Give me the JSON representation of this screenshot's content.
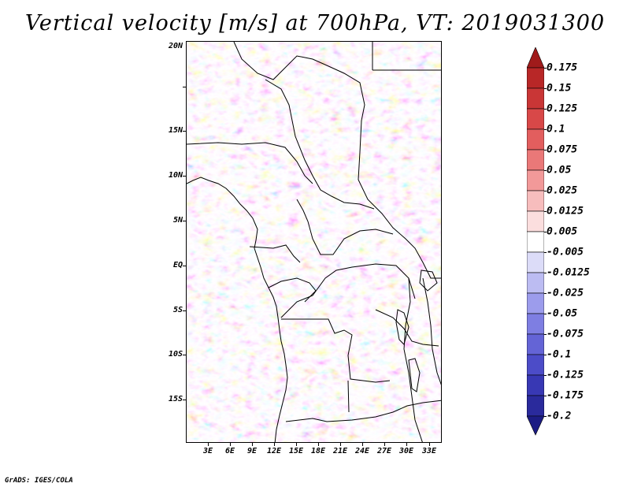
{
  "title": "Vertical velocity [m/s] at 700hPa, VT: 2019031300",
  "credit": "GrADS: IGES/COLA",
  "map": {
    "latitude_labels": [
      "20N",
      "15N",
      "10N",
      "5N",
      "EQ",
      "5S",
      "10S",
      "15S"
    ],
    "longitude_labels": [
      "3E",
      "6E",
      "9E",
      "12E",
      "15E",
      "18E",
      "21E",
      "24E",
      "27E",
      "30E",
      "33E"
    ]
  },
  "colorbar": {
    "labels": [
      "0.175",
      "0.15",
      "0.125",
      "0.1",
      "0.075",
      "0.05",
      "0.025",
      "0.0125",
      "0.005",
      "-0.005",
      "-0.0125",
      "-0.025",
      "-0.05",
      "-0.075",
      "-0.1",
      "-0.125",
      "-0.175",
      "-0.2"
    ],
    "colors": [
      "#a01b1b",
      "#b82727",
      "#c93636",
      "#d84848",
      "#e25e5e",
      "#ea7878",
      "#f29999",
      "#f7bdbd",
      "#fbdede",
      "#ffffff",
      "#dcdcf8",
      "#bcbcf2",
      "#9c9cec",
      "#7e7ee2",
      "#6464d6",
      "#4c4cc8",
      "#3838b4",
      "#2a2a9c",
      "#1c1c84"
    ]
  }
}
